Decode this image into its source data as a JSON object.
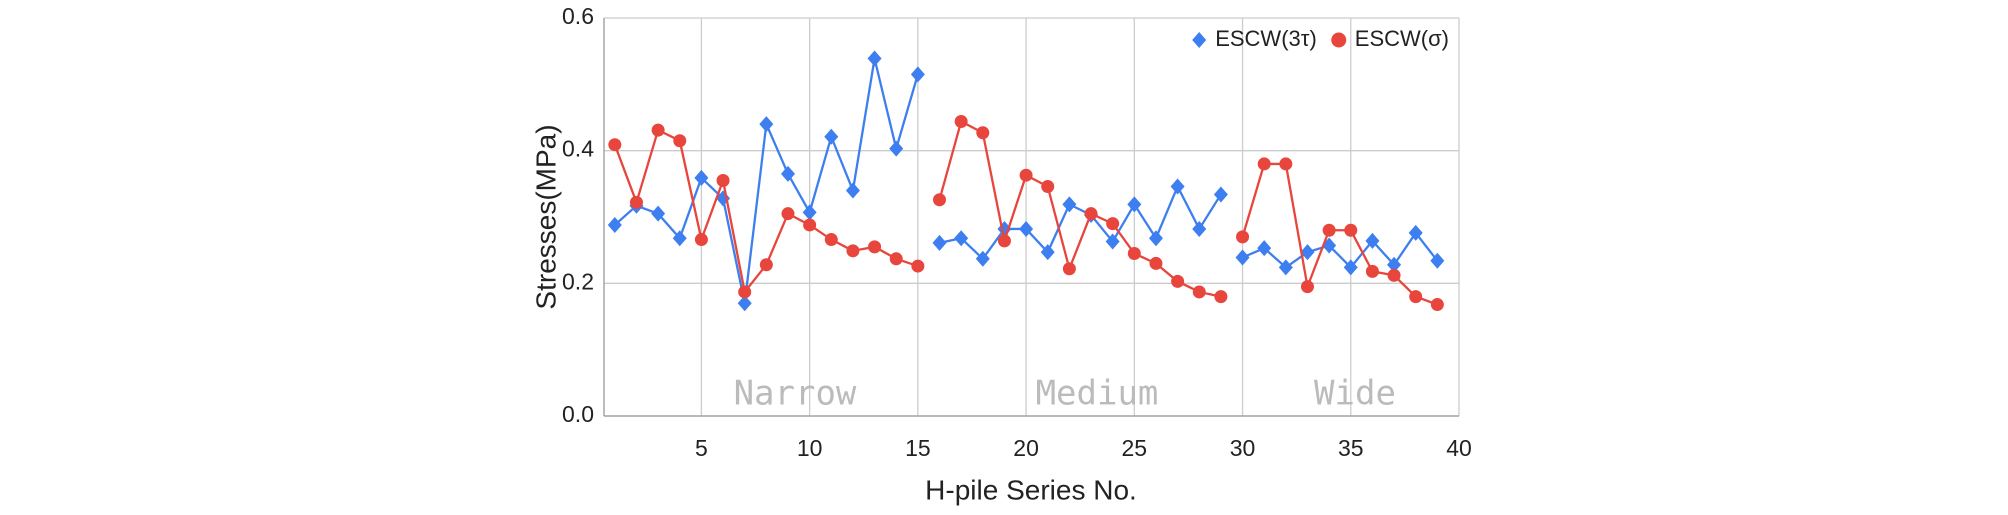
{
  "chart_data": {
    "type": "line",
    "xlabel": "H-pile Series No.",
    "ylabel": "Stresses(MPa)",
    "x": [
      1,
      2,
      3,
      4,
      5,
      6,
      7,
      8,
      9,
      10,
      11,
      12,
      13,
      14,
      15,
      null,
      16,
      17,
      18,
      19,
      20,
      21,
      22,
      23,
      24,
      25,
      26,
      27,
      28,
      29,
      null,
      30,
      31,
      32,
      33,
      34,
      35,
      36,
      37,
      38,
      39
    ],
    "series": [
      {
        "name": "ESCW(3τ)",
        "color": "#3d7ff0",
        "marker": "diamond",
        "values": [
          0.288,
          0.317,
          0.305,
          0.268,
          0.359,
          0.328,
          0.17,
          0.44,
          0.365,
          0.307,
          0.421,
          0.34,
          0.539,
          0.403,
          0.515,
          null,
          0.261,
          0.268,
          0.237,
          0.282,
          0.282,
          0.247,
          0.319,
          0.303,
          0.263,
          0.319,
          0.268,
          0.346,
          0.282,
          0.334,
          null,
          0.239,
          0.253,
          0.224,
          0.247,
          0.257,
          0.224,
          0.264,
          0.228,
          0.276,
          0.234
        ]
      },
      {
        "name": "ESCW(σ)",
        "color": "#e8453c",
        "marker": "circle",
        "values": [
          0.409,
          0.322,
          0.431,
          0.415,
          0.266,
          0.355,
          0.187,
          0.228,
          0.305,
          0.288,
          0.266,
          0.249,
          0.255,
          0.237,
          0.226,
          null,
          0.326,
          0.444,
          0.427,
          0.264,
          0.363,
          0.346,
          0.222,
          0.305,
          0.29,
          0.245,
          0.23,
          0.203,
          0.187,
          0.18,
          null,
          0.27,
          0.38,
          0.38,
          0.195,
          0.28,
          0.28,
          0.218,
          0.212,
          0.18,
          0.168
        ]
      }
    ],
    "xlim": [
      0.5,
      40
    ],
    "xticks": [
      5,
      10,
      15,
      20,
      25,
      30,
      35,
      40
    ],
    "ylim": [
      0,
      0.6
    ],
    "yticks": [
      {
        "value": 0,
        "label": "0.0"
      },
      0.2,
      0.4,
      0.6
    ],
    "grid": true,
    "legend": "top-right",
    "annotations": [
      "Narrow",
      "Medium",
      "Wide"
    ]
  }
}
